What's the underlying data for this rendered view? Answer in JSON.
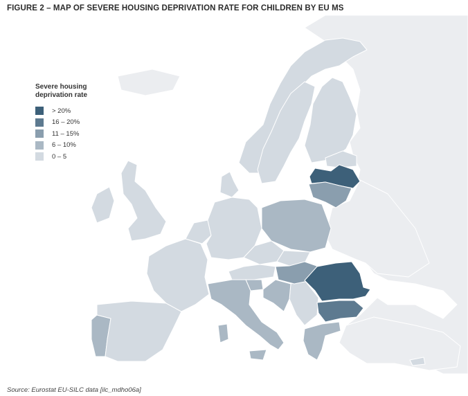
{
  "figure": {
    "title": "FIGURE 2 – MAP OF SEVERE HOUSING DEPRIVATION RATE FOR CHILDREN BY EU MS",
    "source": "Source: Eurostat EU-SILC data [ilc_mdho06a]"
  },
  "legend": {
    "title": "Severe housing deprivation rate",
    "classes": [
      {
        "label": "> 20%",
        "color": "#3d6079"
      },
      {
        "label": "16 – 20%",
        "color": "#5d7a90"
      },
      {
        "label": "11 – 15%",
        "color": "#8a9eae"
      },
      {
        "label": "6 – 10%",
        "color": "#aab8c4"
      },
      {
        "label": "0 – 5",
        "color": "#d3dae1"
      }
    ]
  },
  "colors": {
    "sea": "#ffffff",
    "non_eu": "#ebedf0",
    "border": "#ffffff"
  }
}
